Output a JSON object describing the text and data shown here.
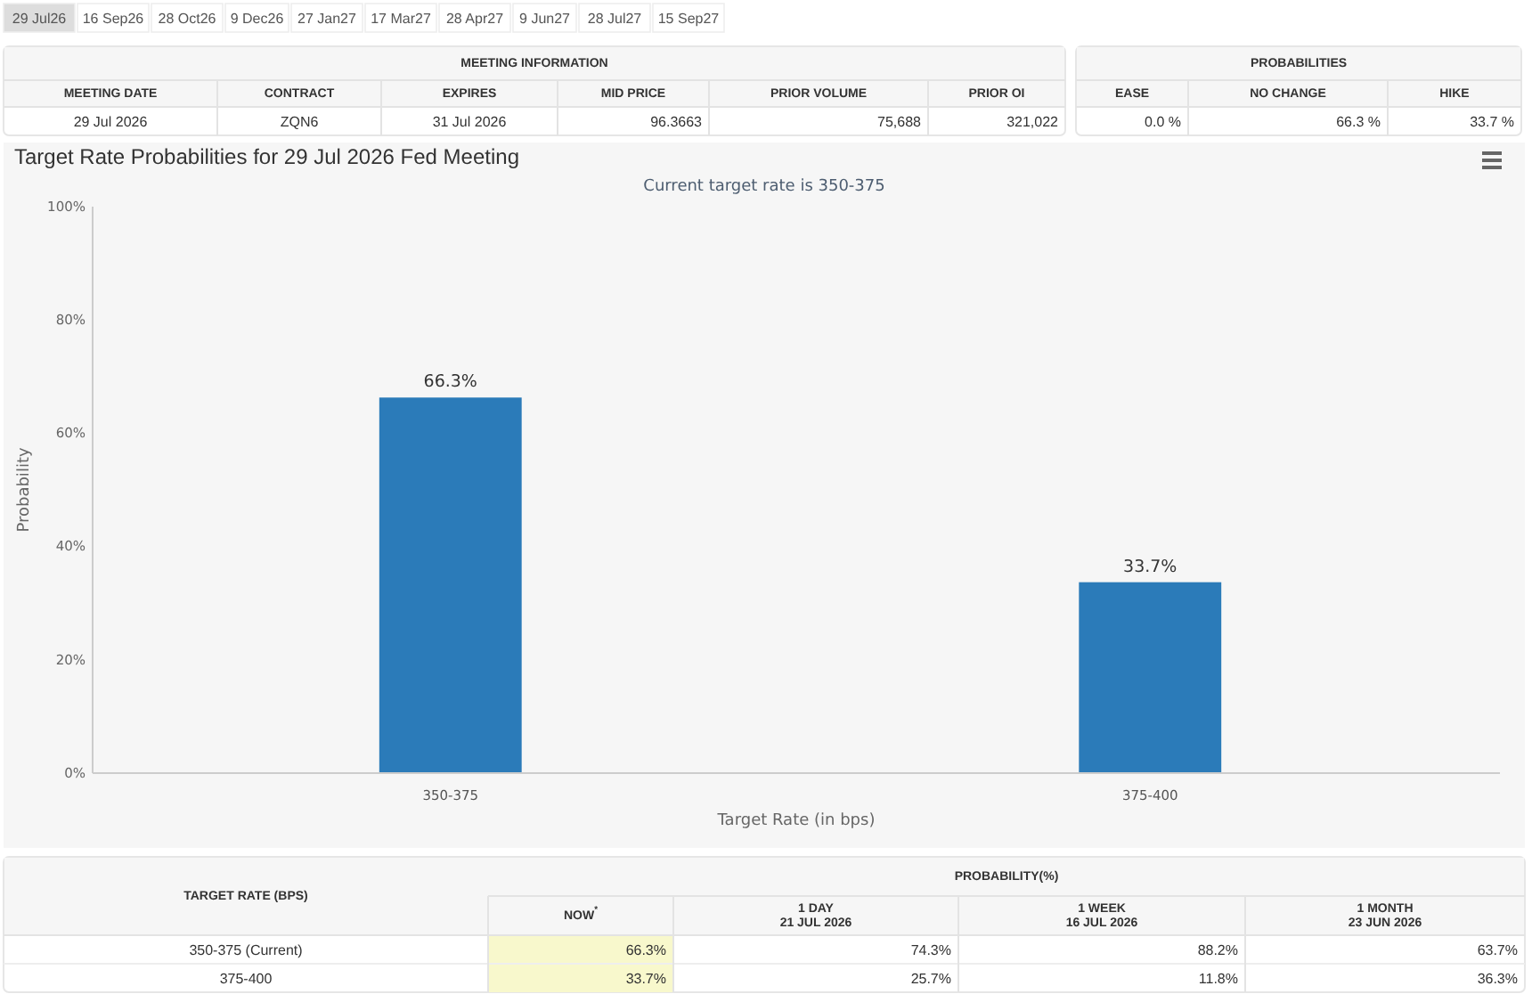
{
  "chart_data": [
    {
      "type": "other",
      "categories": [
        "29 Jul26",
        "16 Sep26",
        "28 Oct26",
        "9 Dec26",
        "27 Jan27",
        "17 Mar27",
        "28 Apr27",
        "9 Jun27",
        "28 Jul27",
        "15 Sep27"
      ]
    },
    {
      "type": "other",
      "title": "MEETING INFORMATION",
      "categories": [
        "MEETING DATE",
        "CONTRACT",
        "EXPIRES",
        "MID PRICE",
        "PRIOR VOLUME",
        "PRIOR OI"
      ],
      "cell_labels": [
        [
          "29 Jul 2026",
          "ZQN6",
          "31 Jul 2026",
          "96.3663",
          "75,688",
          "321,022"
        ]
      ]
    },
    {
      "type": "other",
      "title": "PROBABILITIES",
      "categories": [
        "EASE",
        "NO CHANGE",
        "HIKE"
      ],
      "cell_labels": [
        [
          "0.0 %",
          "66.3 %",
          "33.7 %"
        ]
      ]
    },
    {
      "type": "bar",
      "title": "Target Rate Probabilities for 29 Jul 2026 Fed Meeting",
      "subtitle": "Current target rate is 350-375",
      "xlabel": "Target Rate (in bps)",
      "ylabel": "Probability",
      "categories": [
        "350-375",
        "375-400"
      ],
      "values": [
        66.3,
        33.7
      ],
      "color": "#2b7bb9",
      "ylim": [
        0,
        100
      ],
      "yticks": [
        {
          "value": 0,
          "label": "0%"
        },
        {
          "value": 20,
          "label": "20%"
        },
        {
          "value": 40,
          "label": "40%"
        },
        {
          "value": 60,
          "label": "60%"
        },
        {
          "value": 80,
          "label": "80%"
        },
        {
          "value": 100,
          "label": "100%"
        }
      ],
      "value_labels": [
        "66.3%",
        "33.7%"
      ]
    },
    {
      "type": "other",
      "title": "PROBABILITY(%)",
      "ylabel": "TARGET RATE (BPS)",
      "categories": [
        "NOW$^{*}$",
        "1 DAY\n21 JUL 2026",
        "1 WEEK\n16 JUL 2026",
        "1 MONTH\n23 JUN 2026"
      ],
      "y_categories": [
        "350-375 (Current)",
        "375-400"
      ],
      "cell_labels": [
        [
          "66.3%",
          "74.3%",
          "88.2%",
          "63.7%"
        ],
        [
          "33.7%",
          "25.7%",
          "11.8%",
          "36.3%"
        ]
      ]
    }
  ]
}
